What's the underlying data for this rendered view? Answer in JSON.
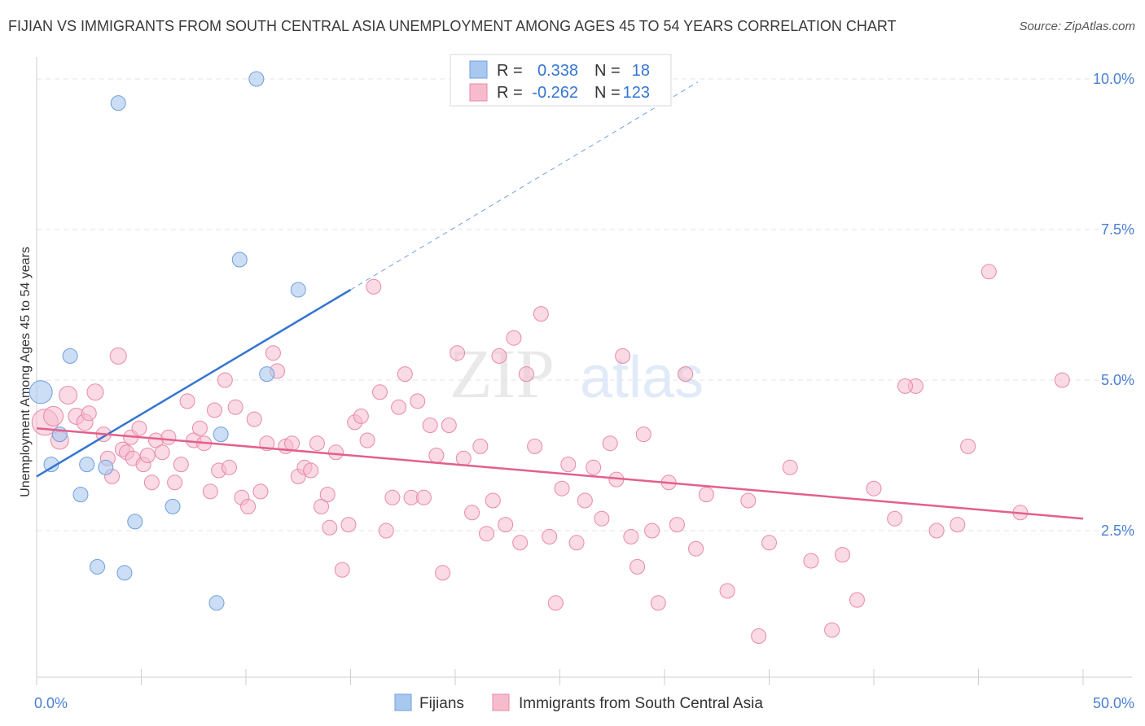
{
  "header": {
    "title": "FIJIAN VS IMMIGRANTS FROM SOUTH CENTRAL ASIA UNEMPLOYMENT AMONG AGES 45 TO 54 YEARS CORRELATION CHART",
    "source": "Source: ZipAtlas.com"
  },
  "watermark": "ZIPatlas",
  "colors": {
    "blue_fill": "#a9c8ef",
    "blue_stroke": "#6f9fdc",
    "blue_line": "#3575d1",
    "pink_fill": "#f6bccd",
    "pink_stroke": "#e88aa7",
    "pink_line": "#e2608a",
    "tick_text": "#4a7fd4",
    "grid": "#e3e3e3"
  },
  "legend": {
    "r_label": "R =",
    "n_label": "N =",
    "rows": [
      {
        "r": "0.338",
        "n": "18"
      },
      {
        "r": "-0.262",
        "n": "123"
      }
    ]
  },
  "bottom_legend": {
    "items": [
      "Fijians",
      "Immigrants from South Central Asia"
    ]
  },
  "chart_data": {
    "type": "scatter",
    "title": "FIJIAN VS IMMIGRANTS FROM SOUTH CENTRAL ASIA UNEMPLOYMENT AMONG AGES 45 TO 54 YEARS CORRELATION CHART",
    "xlabel": "",
    "ylabel": "Unemployment Among Ages 45 to 54 years",
    "xlim": [
      0,
      50
    ],
    "ylim": [
      0,
      10.5
    ],
    "x_tick_labels": [
      "0.0%",
      "50.0%"
    ],
    "y_ticks": [
      2.5,
      5.0,
      7.5,
      10.0
    ],
    "y_tick_labels": [
      "2.5%",
      "5.0%",
      "7.5%",
      "10.0%"
    ],
    "series": [
      {
        "name": "Fijians",
        "r": 0.338,
        "n": 18,
        "trend": {
          "x": [
            0,
            15
          ],
          "y": [
            3.4,
            6.5
          ],
          "dashed_extension_to": [
            31.6,
            9.95
          ]
        },
        "points": [
          [
            10.5,
            10.0,
            9
          ],
          [
            3.9,
            9.6,
            9
          ],
          [
            9.7,
            7.0,
            9
          ],
          [
            12.5,
            6.5,
            9
          ],
          [
            1.6,
            5.4,
            9
          ],
          [
            0.2,
            4.8,
            14
          ],
          [
            11.0,
            5.1,
            9
          ],
          [
            1.1,
            4.1,
            9
          ],
          [
            8.8,
            4.1,
            9
          ],
          [
            0.7,
            3.6,
            9
          ],
          [
            2.4,
            3.6,
            9
          ],
          [
            3.3,
            3.55,
            9
          ],
          [
            2.1,
            3.1,
            9
          ],
          [
            6.5,
            2.9,
            9
          ],
          [
            4.7,
            2.65,
            9
          ],
          [
            2.9,
            1.9,
            9
          ],
          [
            4.2,
            1.8,
            9
          ],
          [
            8.6,
            1.3,
            9
          ]
        ]
      },
      {
        "name": "Immigrants from South Central Asia",
        "r": -0.262,
        "n": 123,
        "trend": {
          "x": [
            0,
            50
          ],
          "y": [
            4.2,
            2.7
          ]
        },
        "points": [
          [
            0.4,
            4.3,
            16
          ],
          [
            0.8,
            4.4,
            12
          ],
          [
            1.1,
            4.0,
            11
          ],
          [
            1.5,
            4.75,
            11
          ],
          [
            1.9,
            4.4,
            10
          ],
          [
            2.3,
            4.3,
            10
          ],
          [
            2.5,
            4.45,
            9
          ],
          [
            2.8,
            4.8,
            10
          ],
          [
            3.2,
            4.1,
            9
          ],
          [
            3.4,
            3.7,
            9
          ],
          [
            3.6,
            3.4,
            9
          ],
          [
            3.9,
            5.4,
            10
          ],
          [
            4.1,
            3.85,
            9
          ],
          [
            4.3,
            3.8,
            9
          ],
          [
            4.5,
            4.05,
            9
          ],
          [
            4.6,
            3.7,
            9
          ],
          [
            4.9,
            4.2,
            9
          ],
          [
            5.1,
            3.6,
            9
          ],
          [
            5.3,
            3.75,
            9
          ],
          [
            5.5,
            3.3,
            9
          ],
          [
            5.7,
            4.0,
            9
          ],
          [
            6.0,
            3.8,
            9
          ],
          [
            6.3,
            4.05,
            9
          ],
          [
            6.6,
            3.3,
            9
          ],
          [
            6.9,
            3.6,
            9
          ],
          [
            7.2,
            4.65,
            9
          ],
          [
            7.5,
            4.0,
            9
          ],
          [
            7.8,
            4.2,
            9
          ],
          [
            8.0,
            3.95,
            9
          ],
          [
            8.3,
            3.15,
            9
          ],
          [
            8.5,
            4.5,
            9
          ],
          [
            8.7,
            3.5,
            9
          ],
          [
            9.0,
            5.0,
            9
          ],
          [
            9.2,
            3.55,
            9
          ],
          [
            9.5,
            4.55,
            9
          ],
          [
            9.8,
            3.05,
            9
          ],
          [
            10.1,
            2.9,
            9
          ],
          [
            10.4,
            4.35,
            9
          ],
          [
            10.7,
            3.15,
            9
          ],
          [
            11.0,
            3.95,
            9
          ],
          [
            11.3,
            5.45,
            9
          ],
          [
            11.5,
            5.15,
            9
          ],
          [
            11.9,
            3.9,
            9
          ],
          [
            12.2,
            3.95,
            9
          ],
          [
            12.5,
            3.4,
            9
          ],
          [
            12.8,
            3.55,
            9
          ],
          [
            13.1,
            3.5,
            9
          ],
          [
            13.4,
            3.95,
            9
          ],
          [
            13.6,
            2.9,
            9
          ],
          [
            13.9,
            3.1,
            9
          ],
          [
            14.0,
            2.55,
            9
          ],
          [
            14.3,
            3.8,
            9
          ],
          [
            14.6,
            1.85,
            9
          ],
          [
            14.9,
            2.6,
            9
          ],
          [
            15.2,
            4.3,
            9
          ],
          [
            15.5,
            4.4,
            9
          ],
          [
            15.8,
            4.0,
            9
          ],
          [
            16.1,
            6.55,
            9
          ],
          [
            16.4,
            4.8,
            9
          ],
          [
            16.7,
            2.5,
            9
          ],
          [
            17.0,
            3.05,
            9
          ],
          [
            17.3,
            4.55,
            9
          ],
          [
            17.6,
            5.1,
            9
          ],
          [
            17.9,
            3.05,
            9
          ],
          [
            18.2,
            4.65,
            9
          ],
          [
            18.5,
            3.05,
            9
          ],
          [
            18.8,
            4.25,
            9
          ],
          [
            19.1,
            3.75,
            9
          ],
          [
            19.4,
            1.8,
            9
          ],
          [
            19.7,
            4.25,
            9
          ],
          [
            20.1,
            5.45,
            9
          ],
          [
            20.4,
            3.7,
            9
          ],
          [
            20.8,
            2.8,
            9
          ],
          [
            21.2,
            3.9,
            9
          ],
          [
            21.5,
            2.45,
            9
          ],
          [
            21.8,
            3.0,
            9
          ],
          [
            22.1,
            5.4,
            9
          ],
          [
            22.4,
            2.6,
            9
          ],
          [
            22.8,
            5.7,
            9
          ],
          [
            23.1,
            2.3,
            9
          ],
          [
            23.4,
            5.1,
            9
          ],
          [
            23.8,
            3.9,
            9
          ],
          [
            24.1,
            6.1,
            9
          ],
          [
            24.5,
            2.4,
            9
          ],
          [
            24.8,
            1.3,
            9
          ],
          [
            25.1,
            3.2,
            9
          ],
          [
            25.4,
            3.6,
            9
          ],
          [
            25.8,
            2.3,
            9
          ],
          [
            26.2,
            3.0,
            9
          ],
          [
            26.6,
            3.55,
            9
          ],
          [
            27.0,
            2.7,
            9
          ],
          [
            27.4,
            3.95,
            9
          ],
          [
            27.7,
            3.35,
            9
          ],
          [
            28.0,
            5.4,
            9
          ],
          [
            28.4,
            2.4,
            9
          ],
          [
            28.7,
            1.9,
            9
          ],
          [
            29.0,
            4.1,
            9
          ],
          [
            29.4,
            2.5,
            9
          ],
          [
            29.7,
            1.3,
            9
          ],
          [
            30.2,
            3.3,
            9
          ],
          [
            30.6,
            2.6,
            9
          ],
          [
            31.0,
            5.1,
            9
          ],
          [
            31.5,
            2.2,
            9
          ],
          [
            32.0,
            3.1,
            9
          ],
          [
            33.0,
            1.5,
            9
          ],
          [
            34.0,
            3.0,
            9
          ],
          [
            34.5,
            0.75,
            9
          ],
          [
            35.0,
            2.3,
            9
          ],
          [
            36.0,
            3.55,
            9
          ],
          [
            37.0,
            2.0,
            9
          ],
          [
            38.0,
            0.85,
            9
          ],
          [
            38.5,
            2.1,
            9
          ],
          [
            39.2,
            1.35,
            9
          ],
          [
            40.0,
            3.2,
            9
          ],
          [
            41.0,
            2.7,
            9
          ],
          [
            42.0,
            4.9,
            9
          ],
          [
            43.0,
            2.5,
            9
          ],
          [
            44.0,
            2.6,
            9
          ],
          [
            44.5,
            3.9,
            9
          ],
          [
            45.5,
            6.8,
            9
          ],
          [
            47.0,
            2.8,
            9
          ],
          [
            49.0,
            5.0,
            9
          ],
          [
            41.5,
            4.9,
            9
          ]
        ]
      }
    ]
  }
}
